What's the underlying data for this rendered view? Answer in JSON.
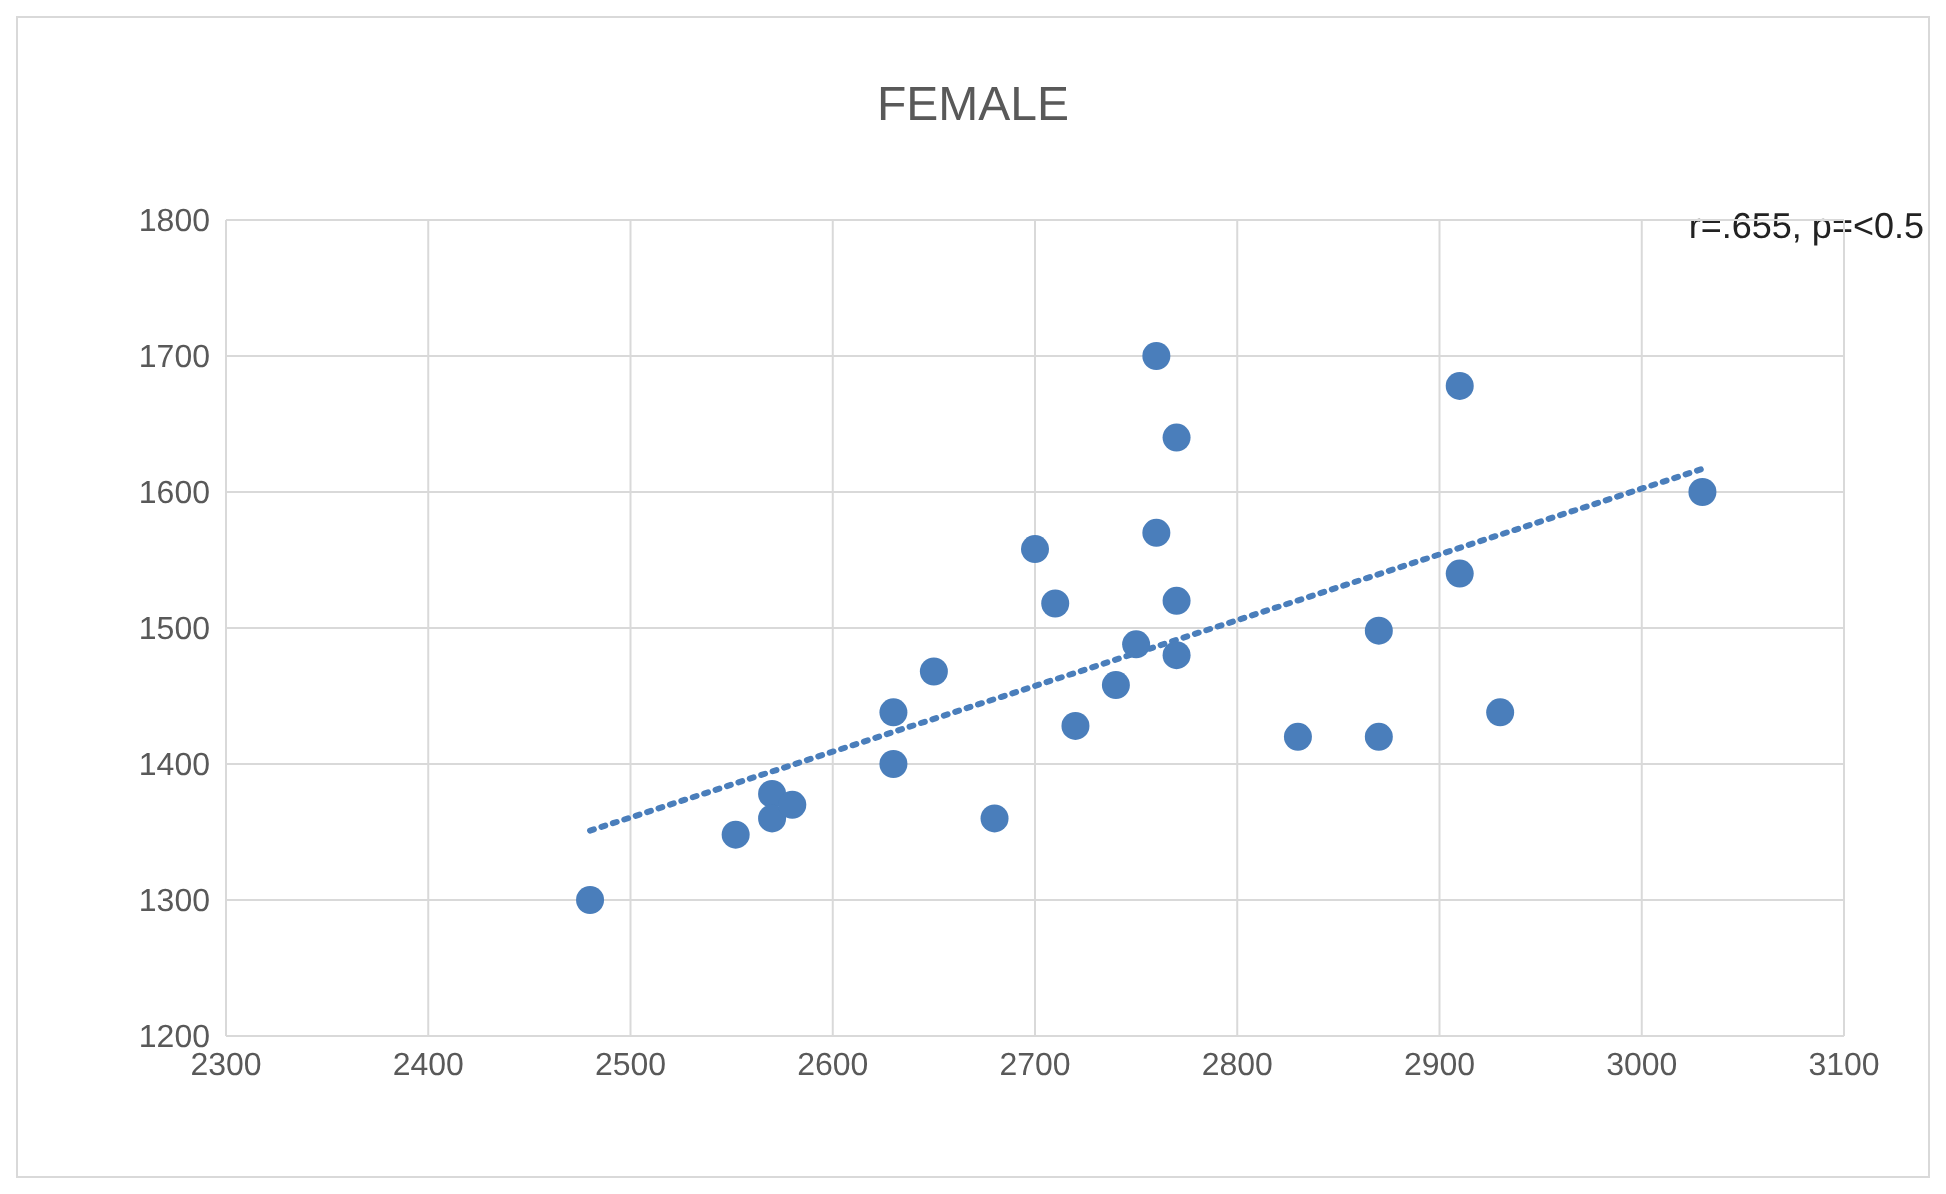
{
  "chart_data": {
    "type": "scatter",
    "title": "FEMALE",
    "annotations": [
      "r=.655, p=<0.5"
    ],
    "series": [
      {
        "color": "#4a7ebb",
        "x": [
          2480,
          2552,
          2570,
          2570,
          2580,
          2630,
          2630,
          2650,
          2680,
          2700,
          2710,
          2720,
          2740,
          2750,
          2760,
          2760,
          2770,
          2770,
          2770,
          2830,
          2870,
          2870,
          2910,
          2910,
          2930,
          3030
        ],
        "values": [
          1300,
          1348,
          1378,
          1360,
          1370,
          1438,
          1400,
          1468,
          1360,
          1558,
          1518,
          1428,
          1458,
          1488,
          1700,
          1570,
          1640,
          1520,
          1480,
          1420,
          1498,
          1420,
          1678,
          1540,
          1438,
          1600
        ]
      },
      {
        "type": "line",
        "color": "#4a7ebb",
        "line_style": "dotted",
        "marker": "none",
        "x": [
          2480,
          3030
        ],
        "values": [
          1351,
          1617
        ]
      }
    ],
    "marker": "circle",
    "xlim": [
      2300,
      3100
    ],
    "xticks": [
      2300,
      2400,
      2500,
      2600,
      2700,
      2800,
      2900,
      3000,
      3100
    ],
    "ylim": [
      1200,
      1800
    ],
    "yticks": [
      1200,
      1300,
      1400,
      1500,
      1600,
      1700,
      1800
    ],
    "grid": true,
    "legend": false
  }
}
